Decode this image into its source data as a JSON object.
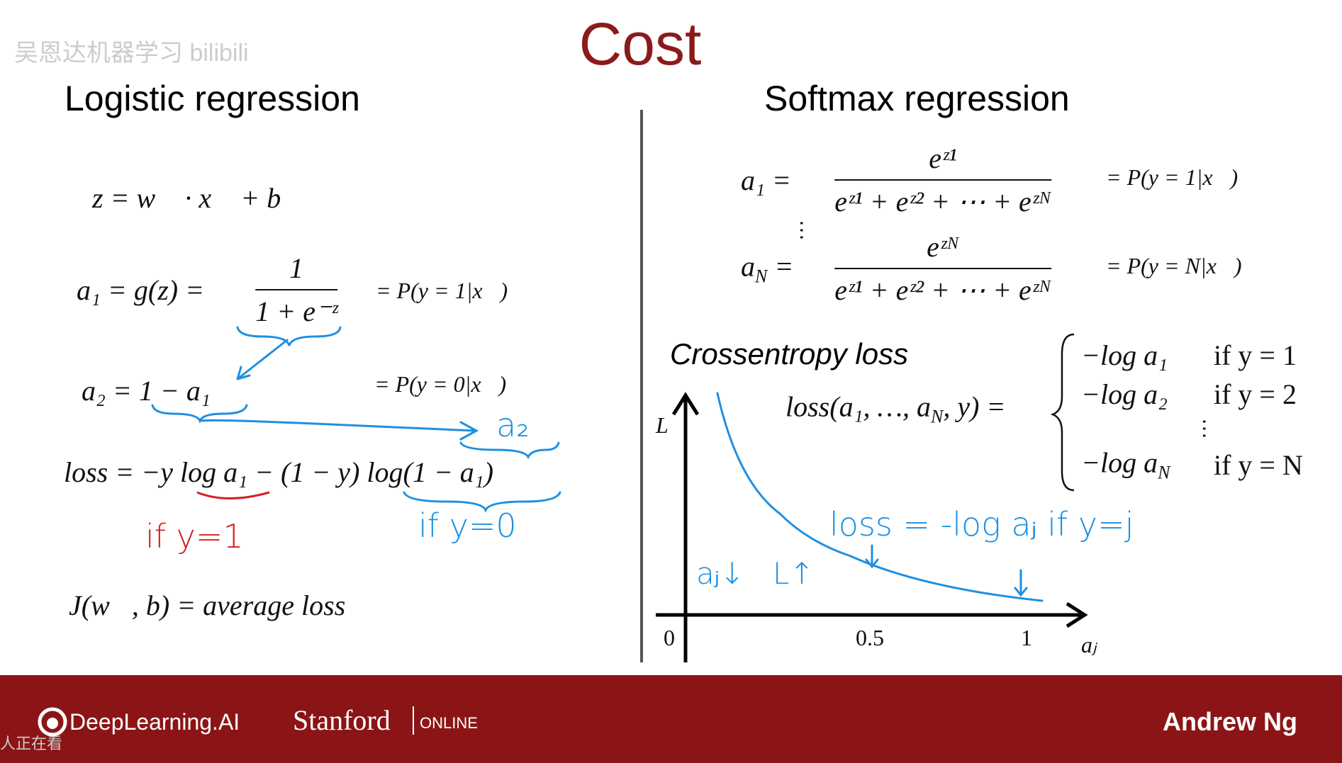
{
  "watermark": "吴恩达机器学习 bilibili",
  "title": "Cost",
  "left": {
    "heading": "Logistic regression",
    "eq_z": "z = w⃗ · x⃗ + b",
    "eq_a1": {
      "lhs": "a₁ = g(z) =",
      "num": "1",
      "den": "1 + e⁻ᶻ",
      "rhs": "= P(y = 1|x⃗)"
    },
    "eq_a2": {
      "lhs": "a₂ = 1 − a₁",
      "rhs": "= P(y = 0|x⃗)"
    },
    "eq_loss": "loss = −y log a₁ − (1 − y) log(1 − a₁)",
    "eq_cost": "J(w⃗, b) = average loss",
    "note_a2": "a₂",
    "note_y1": "if y=1",
    "note_y0": "if y=0"
  },
  "right": {
    "heading": "Softmax regression",
    "eq_a1": {
      "lhs": "a₁ =",
      "num": "eᶻ¹",
      "den": "eᶻ¹ + eᶻ² + ⋯ + eᶻᴺ",
      "rhs": "= P(y = 1|x⃗)"
    },
    "eq_aN": {
      "var": "a",
      "sub": "N",
      "eq": "=",
      "num": "eᶻᴺ",
      "den": "eᶻ¹ + eᶻ² + ⋯ + eᶻᴺ",
      "rhs": "= P(y = N|x⃗)"
    },
    "loss_title": "Crossentropy loss",
    "loss_lhs": {
      "pre": "loss(a₁, …, a",
      "sub": "N",
      "post": ", y) ="
    },
    "cases": [
      {
        "expr": "−log a₁",
        "cond": "if y = 1"
      },
      {
        "expr": "−log a₂",
        "cond": "if y = 2"
      },
      {
        "expr": "−log a",
        "sub": "N",
        "cond": "if y = N"
      }
    ],
    "graph": {
      "y_label": "L",
      "x_label": "aⱼ",
      "x_ticks": [
        "0",
        "0.5",
        "1"
      ]
    },
    "note_loss": "loss = -log aⱼ  if y=j",
    "note_aj": "aⱼ↓",
    "note_L": "L↑"
  },
  "footer": {
    "brand": "DeepLearning.AI",
    "partner": "Stanford",
    "partner_sub": "ONLINE",
    "presenter": "Andrew Ng"
  },
  "overlay": "人正在看"
}
